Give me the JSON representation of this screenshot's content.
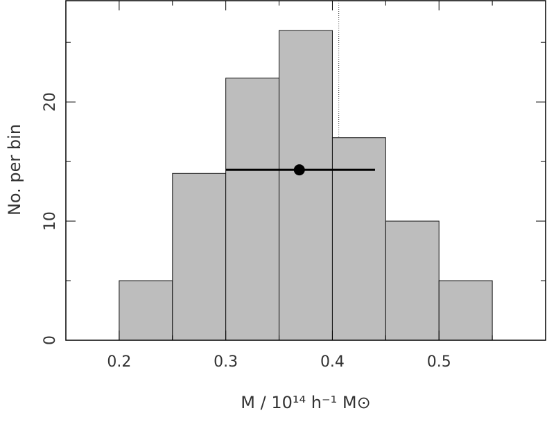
{
  "chart_data": {
    "type": "histogram",
    "xlabel": "M / 10¹⁴ h⁻¹ M⊙",
    "ylabel": "No. per bin",
    "bins": [
      0.2,
      0.25,
      0.3,
      0.35,
      0.4,
      0.45,
      0.5,
      0.55
    ],
    "counts": [
      5,
      14,
      22,
      26,
      17,
      10,
      5
    ],
    "color": "#bdbdbd",
    "marker": {
      "x": 0.369,
      "y": 14.3,
      "xmin": 0.3,
      "xmax": 0.44
    },
    "vline": 0.406,
    "xlim": [
      0.15,
      0.6
    ],
    "xticks": [
      0.2,
      0.3,
      0.4,
      0.5
    ],
    "xminor": [
      0.15,
      0.25,
      0.35,
      0.45,
      0.55
    ],
    "ylim": [
      0,
      28.5
    ],
    "yticks": [
      0,
      10,
      20
    ],
    "yminor": [
      5,
      15,
      25
    ]
  }
}
